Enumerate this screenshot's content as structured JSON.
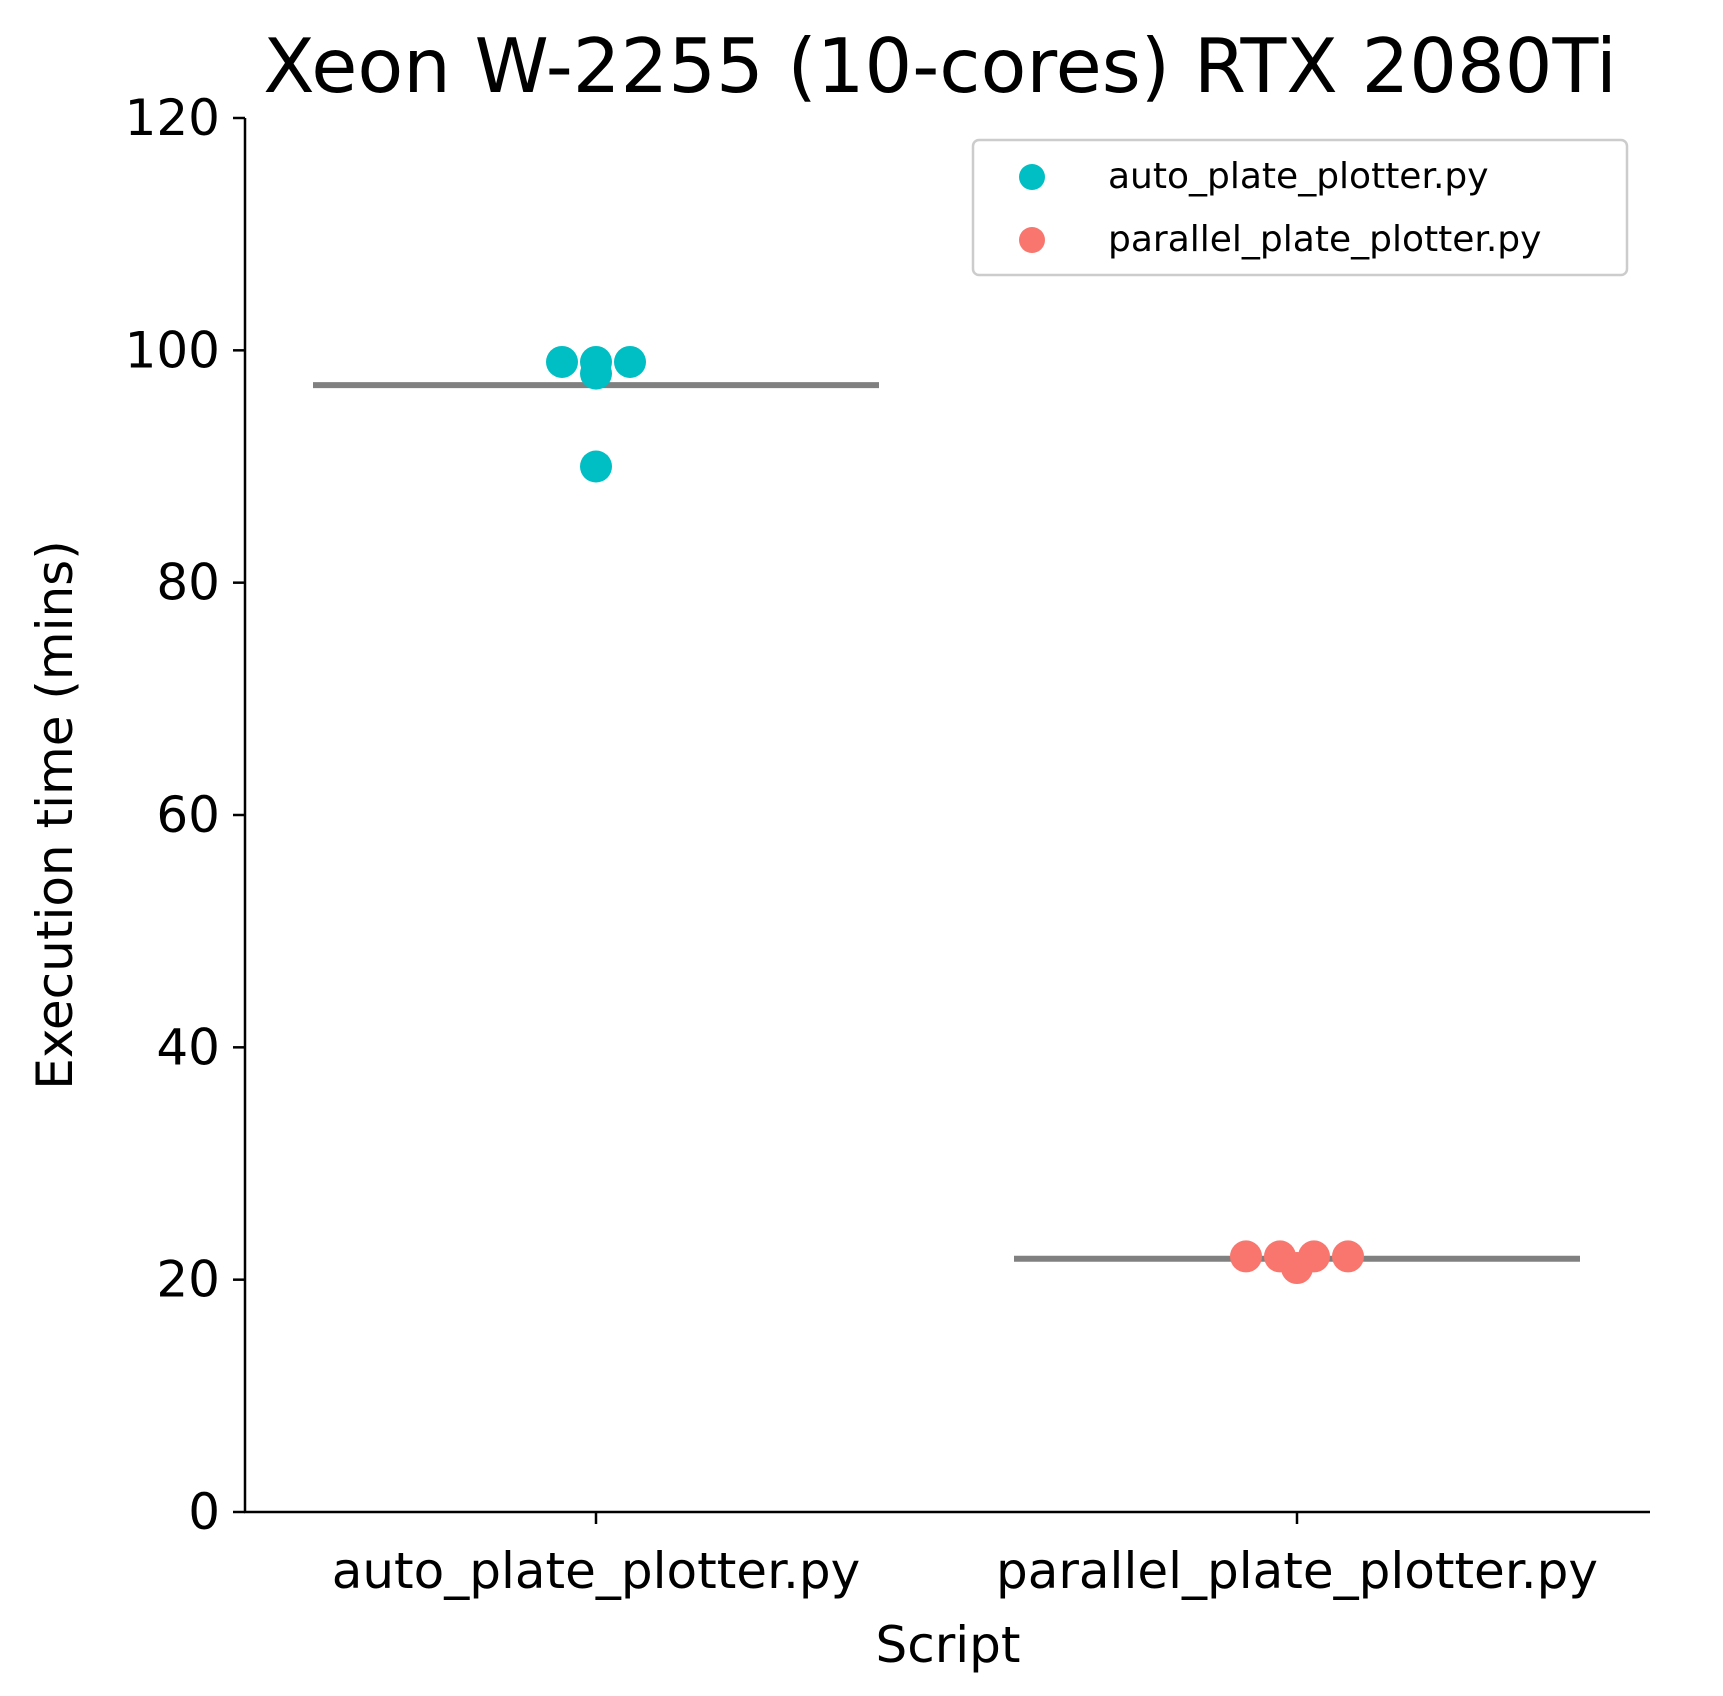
{
  "chart_data": {
    "type": "scatter",
    "title": "Xeon W-2255 (10-cores) RTX 2080Ti",
    "xlabel": "Script",
    "ylabel": "Execution time (mins)",
    "ylim": [
      0,
      120
    ],
    "yticks": [
      "0",
      "20",
      "40",
      "60",
      "80",
      "100",
      "120"
    ],
    "categories": [
      "auto_plate_plotter.py",
      "parallel_plate_plotter.py"
    ],
    "grid": false,
    "legend_position": "top-right",
    "series": [
      {
        "name": "auto_plate_plotter.py",
        "category": "auto_plate_plotter.py",
        "color": "#00BFC4",
        "values": [
          99,
          99,
          98,
          99,
          90
        ],
        "mean": 97
      },
      {
        "name": "parallel_plate_plotter.py",
        "category": "parallel_plate_plotter.py",
        "color": "#F8766D",
        "values": [
          22,
          22,
          21,
          22,
          22
        ],
        "mean": 21.8
      }
    ],
    "mean_line_color": "#808080"
  }
}
